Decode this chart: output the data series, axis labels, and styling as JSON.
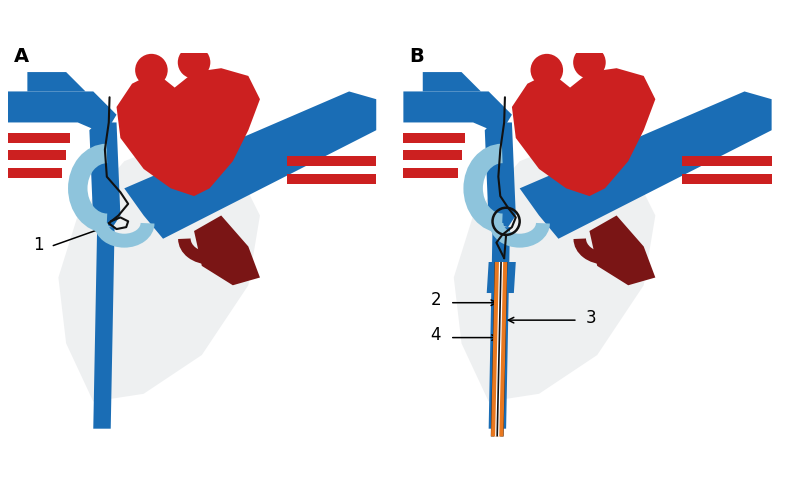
{
  "bg_color": "#ffffff",
  "label_A": "A",
  "label_B": "B",
  "label_1": "1",
  "label_2": "2",
  "label_3": "3",
  "label_4": "4",
  "heart_red": "#cc2020",
  "vein_blue": "#1a6db5",
  "vein_light_blue": "#8ec4dc",
  "artery_dark_red": "#7a1515",
  "orange_catheter": "#e87820",
  "black_line": "#111111",
  "shadow_gray": "#d0d4d8"
}
